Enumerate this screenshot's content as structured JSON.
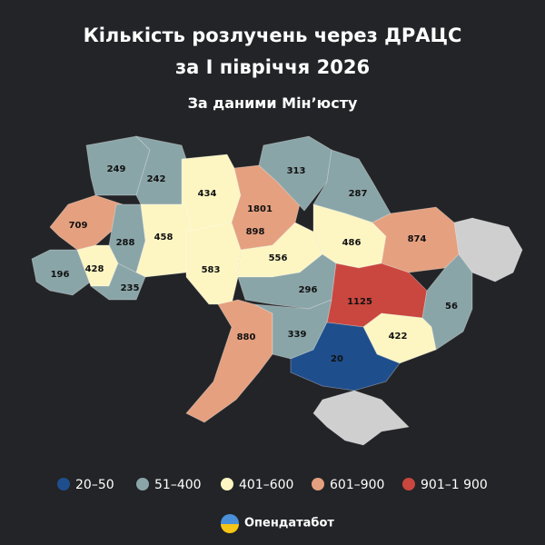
{
  "title": [
    "Кількість розлучень через ДРАЦС",
    "за І півріччя 2026"
  ],
  "subtitle": "За даними Мін’юсту",
  "regions": [
    {
      "value": 249,
      "color": "#8aa5a8"
    },
    {
      "value": 242,
      "color": "#8aa5a8"
    },
    {
      "value": 434,
      "color": "#fdf6c3"
    },
    {
      "value": 1801,
      "color": "#c9473f"
    },
    {
      "value": 898,
      "color": "#e5a07f"
    },
    {
      "value": 313,
      "color": "#8aa5a8"
    },
    {
      "value": 287,
      "color": "#8aa5a8"
    },
    {
      "value": 709,
      "color": "#e5a07f"
    },
    {
      "value": 288,
      "color": "#8aa5a8"
    },
    {
      "value": 458,
      "color": "#fdf6c3"
    },
    {
      "value": 583,
      "color": "#fdf6c3"
    },
    {
      "value": 556,
      "color": "#fdf6c3"
    },
    {
      "value": 486,
      "color": "#fdf6c3"
    },
    {
      "value": 874,
      "color": "#e5a07f"
    },
    {
      "value": 196,
      "color": "#8aa5a8"
    },
    {
      "value": 428,
      "color": "#fdf6c3"
    },
    {
      "value": 235,
      "color": "#8aa5a8"
    },
    {
      "value": 296,
      "color": "#8aa5a8"
    },
    {
      "value": 1125,
      "color": "#c9473f"
    },
    {
      "value": 56,
      "color": "#8aa5a8"
    },
    {
      "value": 880,
      "color": "#e5a07f"
    },
    {
      "value": 339,
      "color": "#8aa5a8"
    },
    {
      "value": 422,
      "color": "#fdf6c3"
    },
    {
      "value": 20,
      "color": "#1f4e8c"
    }
  ],
  "no_data_color": "#cfcfcf",
  "legend": [
    {
      "label": "20–50",
      "color": "#1f4e8c"
    },
    {
      "label": "51–400",
      "color": "#8aa5a8"
    },
    {
      "label": "401–600",
      "color": "#fdf6c3"
    },
    {
      "label": "601–900",
      "color": "#e5a07f"
    },
    {
      "label": "901–1 900",
      "color": "#c9473f"
    }
  ],
  "brand": "Опендатабот"
}
